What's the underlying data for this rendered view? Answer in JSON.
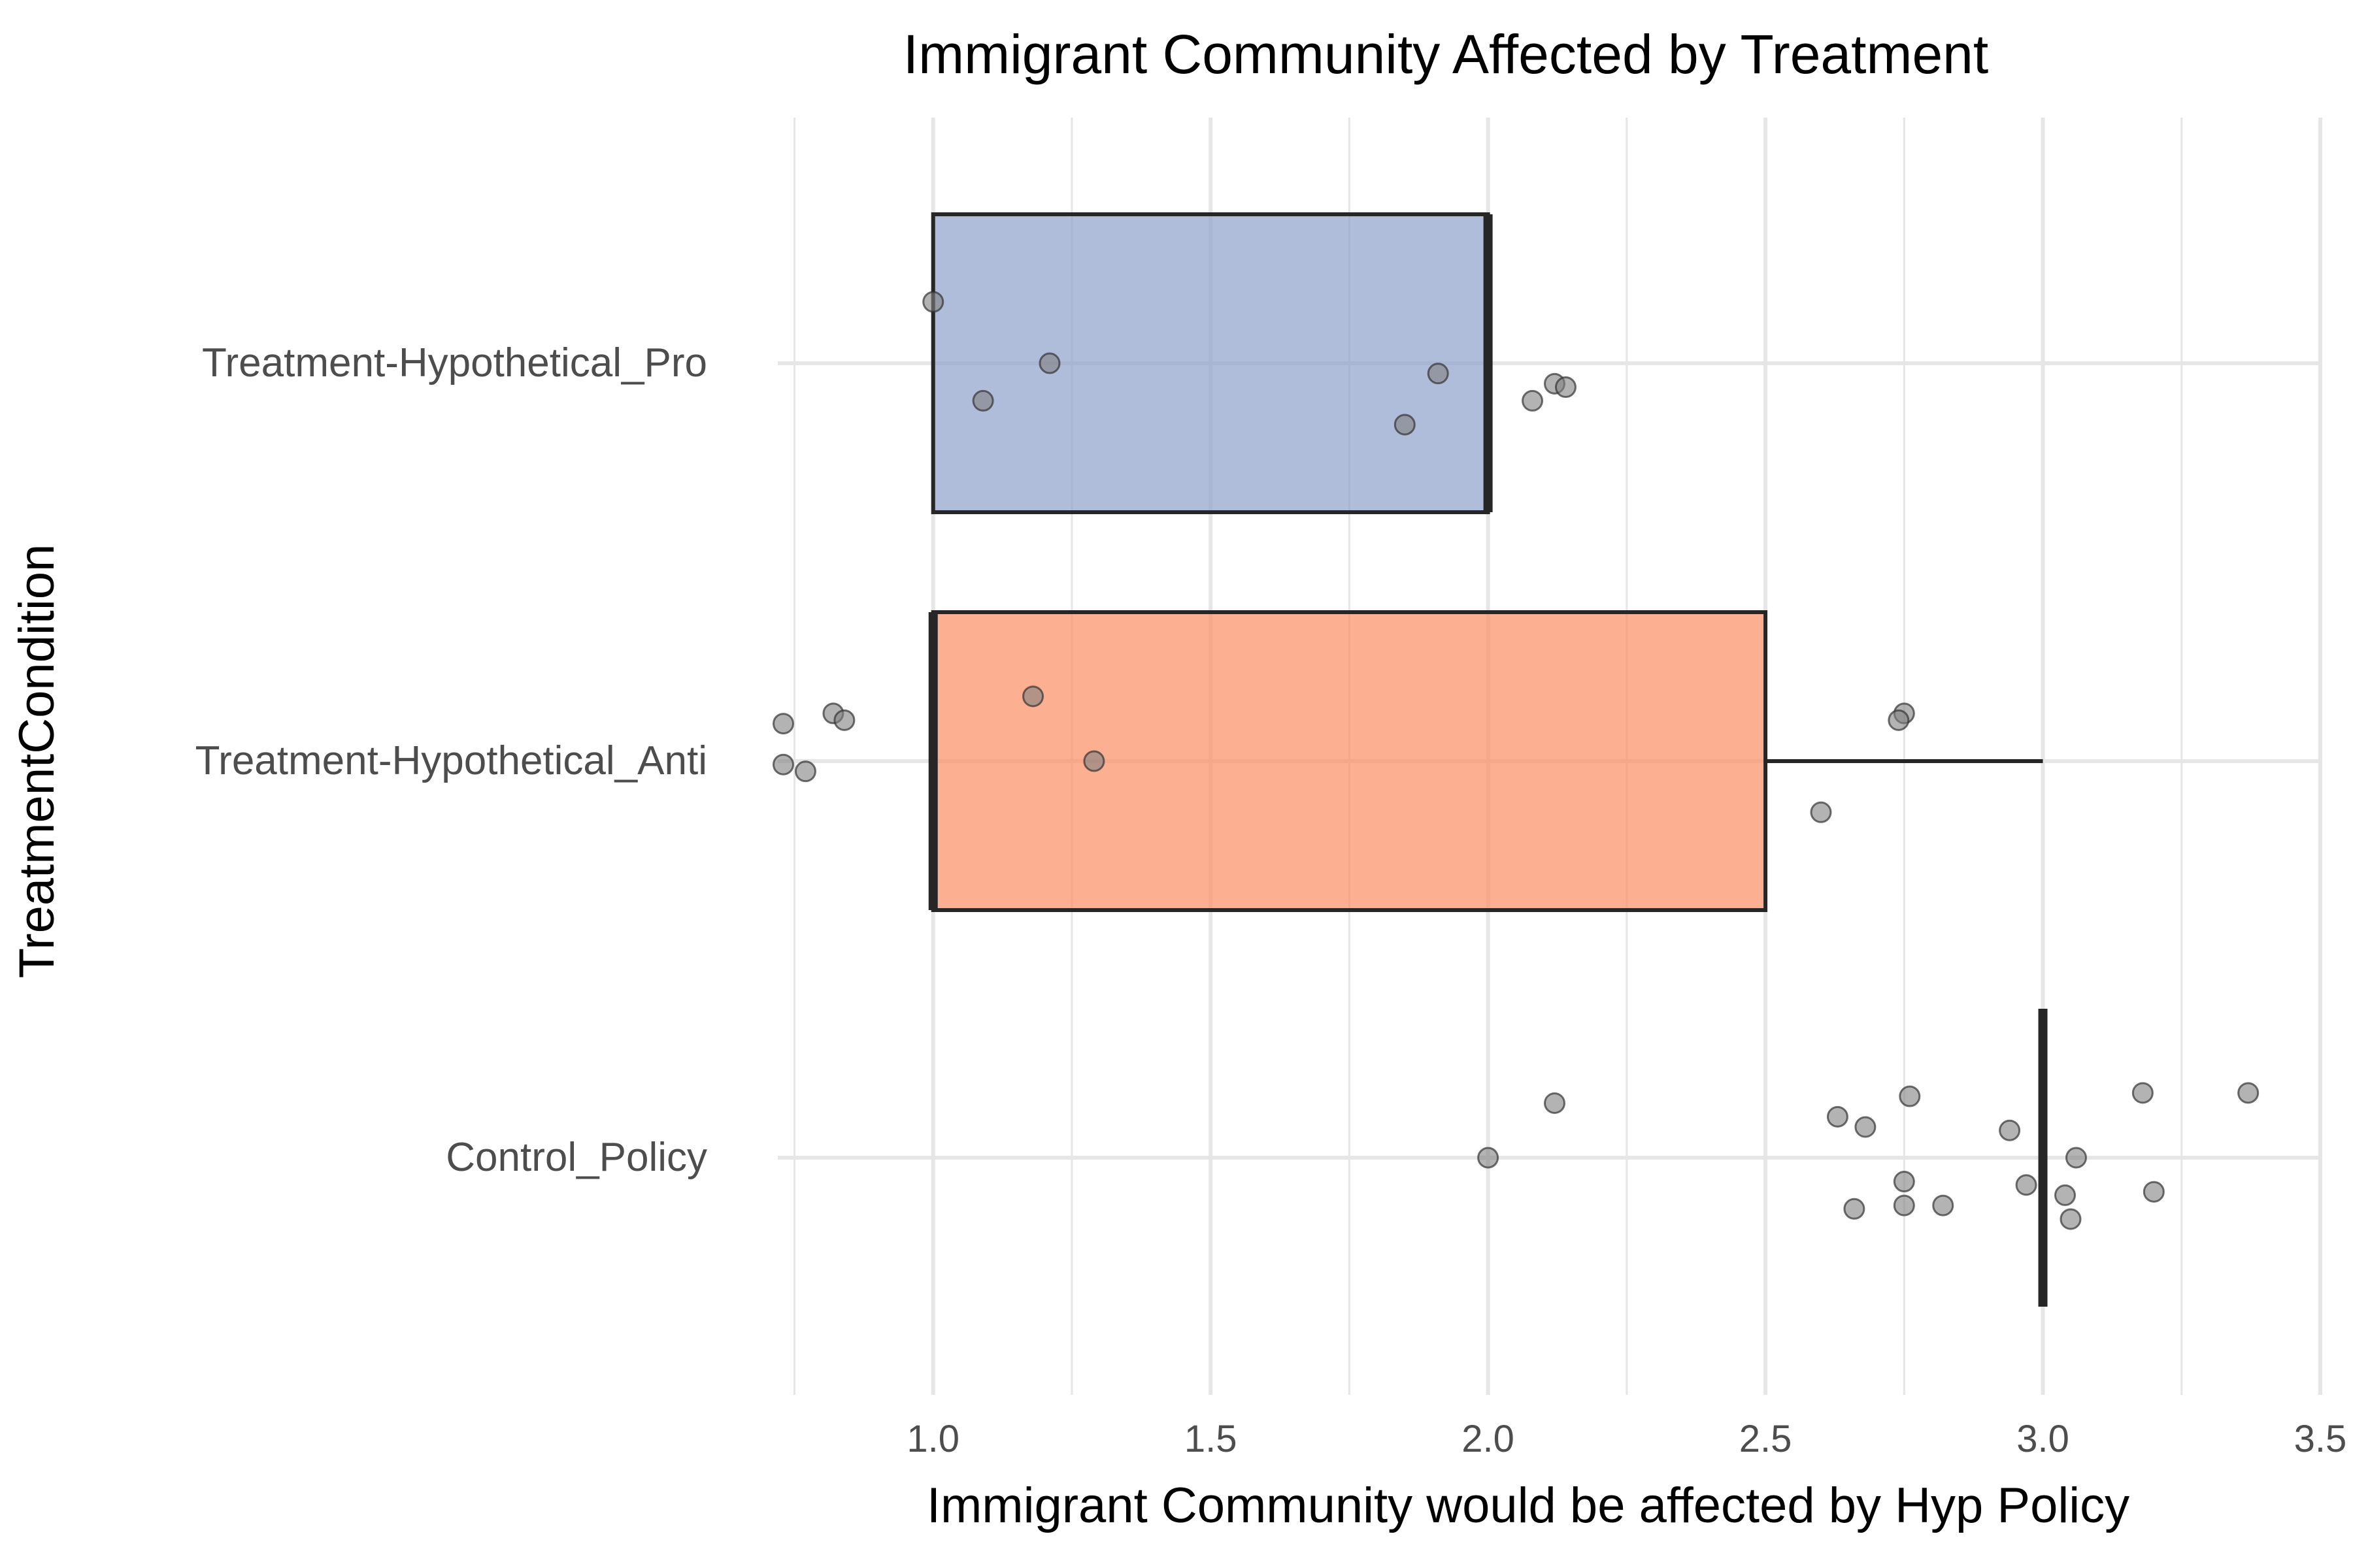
{
  "chart_data": {
    "type": "boxplot",
    "title": "Immigrant Community Affected by Treatment",
    "xlabel": "Immigrant Community would be affected by Hyp Policy",
    "ylabel": "TreatmentCondition",
    "xlim": [
      0.72,
      3.5
    ],
    "x_ticks": [
      "1.0",
      "1.5",
      "2.0",
      "2.5",
      "3.0",
      "3.5"
    ],
    "grid": true,
    "categories": [
      "Treatment-Hypothetical_Pro",
      "Treatment-Hypothetical_Anti",
      "Control_Policy"
    ],
    "boxes": [
      {
        "category": "Treatment-Hypothetical_Pro",
        "min": 1,
        "q1": 1,
        "median": 2,
        "q3": 2,
        "max": 2,
        "fill": "#8da0cb"
      },
      {
        "category": "Treatment-Hypothetical_Anti",
        "min": 1,
        "q1": 1,
        "median": 1,
        "q3": 2.5,
        "max": 3,
        "fill": "#fc8d62"
      },
      {
        "category": "Control_Policy",
        "min": 3,
        "q1": 3,
        "median": 3,
        "q3": 3,
        "max": 3,
        "fill": "#66c2a5"
      }
    ],
    "points": [
      {
        "category": "Treatment-Hypothetical_Pro",
        "x": 1.0,
        "jitter": 0.18
      },
      {
        "category": "Treatment-Hypothetical_Pro",
        "x": 1.21,
        "jitter": 0.0
      },
      {
        "category": "Treatment-Hypothetical_Pro",
        "x": 1.09,
        "jitter": -0.11
      },
      {
        "category": "Treatment-Hypothetical_Pro",
        "x": 1.91,
        "jitter": -0.03
      },
      {
        "category": "Treatment-Hypothetical_Pro",
        "x": 1.85,
        "jitter": -0.18
      },
      {
        "category": "Treatment-Hypothetical_Pro",
        "x": 2.12,
        "jitter": -0.06
      },
      {
        "category": "Treatment-Hypothetical_Pro",
        "x": 2.14,
        "jitter": -0.07
      },
      {
        "category": "Treatment-Hypothetical_Pro",
        "x": 2.08,
        "jitter": -0.11
      },
      {
        "category": "Treatment-Hypothetical_Anti",
        "x": 1.18,
        "jitter": 0.19
      },
      {
        "category": "Treatment-Hypothetical_Anti",
        "x": 1.29,
        "jitter": 0.0
      },
      {
        "category": "Treatment-Hypothetical_Anti",
        "x": 0.73,
        "jitter": 0.11
      },
      {
        "category": "Treatment-Hypothetical_Anti",
        "x": 0.82,
        "jitter": 0.14
      },
      {
        "category": "Treatment-Hypothetical_Anti",
        "x": 0.84,
        "jitter": 0.12
      },
      {
        "category": "Treatment-Hypothetical_Anti",
        "x": 0.73,
        "jitter": -0.01
      },
      {
        "category": "Treatment-Hypothetical_Anti",
        "x": 0.77,
        "jitter": -0.03
      },
      {
        "category": "Treatment-Hypothetical_Anti",
        "x": 2.75,
        "jitter": 0.14
      },
      {
        "category": "Treatment-Hypothetical_Anti",
        "x": 2.74,
        "jitter": 0.12
      },
      {
        "category": "Treatment-Hypothetical_Anti",
        "x": 2.6,
        "jitter": -0.15
      },
      {
        "category": "Control_Policy",
        "x": 2.0,
        "jitter": 0.0
      },
      {
        "category": "Control_Policy",
        "x": 2.12,
        "jitter": 0.16
      },
      {
        "category": "Control_Policy",
        "x": 2.63,
        "jitter": 0.12
      },
      {
        "category": "Control_Policy",
        "x": 2.68,
        "jitter": 0.09
      },
      {
        "category": "Control_Policy",
        "x": 2.76,
        "jitter": 0.18
      },
      {
        "category": "Control_Policy",
        "x": 2.94,
        "jitter": 0.08
      },
      {
        "category": "Control_Policy",
        "x": 3.18,
        "jitter": 0.19
      },
      {
        "category": "Control_Policy",
        "x": 3.37,
        "jitter": 0.19
      },
      {
        "category": "Control_Policy",
        "x": 3.06,
        "jitter": 0.0
      },
      {
        "category": "Control_Policy",
        "x": 2.75,
        "jitter": -0.07
      },
      {
        "category": "Control_Policy",
        "x": 2.97,
        "jitter": -0.08
      },
      {
        "category": "Control_Policy",
        "x": 3.04,
        "jitter": -0.11
      },
      {
        "category": "Control_Policy",
        "x": 3.2,
        "jitter": -0.1
      },
      {
        "category": "Control_Policy",
        "x": 2.66,
        "jitter": -0.15
      },
      {
        "category": "Control_Policy",
        "x": 2.75,
        "jitter": -0.14
      },
      {
        "category": "Control_Policy",
        "x": 2.82,
        "jitter": -0.14
      },
      {
        "category": "Control_Policy",
        "x": 3.05,
        "jitter": -0.18
      }
    ],
    "colors": {
      "box_outline": "#262626",
      "grid": "#e6e6e6",
      "point_fill": "#808080",
      "point_stroke": "#333333"
    }
  }
}
